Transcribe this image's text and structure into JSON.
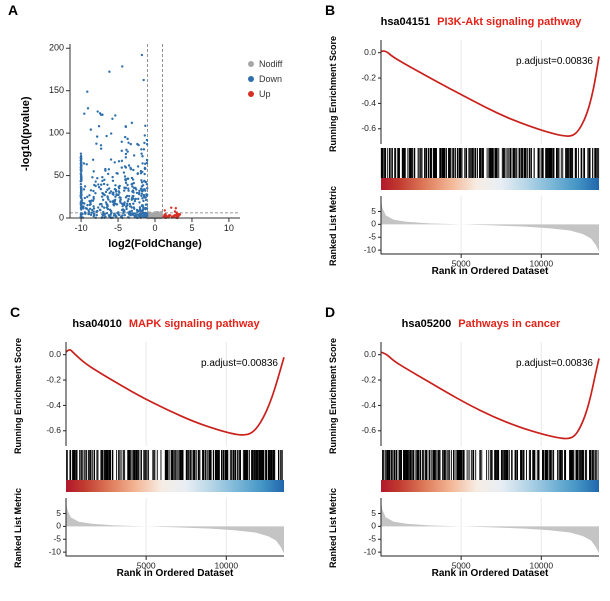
{
  "background": "#ffffff",
  "chart_data": [
    {
      "panel_label": "A",
      "type": "scatter",
      "variant": "volcano",
      "xlabel": "log2(FoldChange)",
      "ylabel": "-log10(pvalue)",
      "xlim": [
        -11.5,
        11.5
      ],
      "ylim": [
        0,
        205
      ],
      "xticks": [
        -10,
        -5,
        0,
        5,
        10
      ],
      "yticks": [
        0,
        50,
        100,
        150,
        200
      ],
      "vlines": [
        -1,
        1
      ],
      "hline": 6,
      "axis_color": "#333333",
      "legend": [
        {
          "label": "Nodiff",
          "color": "#a6a6a6"
        },
        {
          "label": "Down",
          "color": "#2e6fac"
        },
        {
          "label": "Up",
          "color": "#d73027"
        }
      ],
      "point_groups": [
        {
          "name": "nodiff",
          "color": "#a6a6a6",
          "count": 170,
          "seed": 31,
          "x_range": [
            -1.02,
            1.02
          ],
          "y_max": 7,
          "dist": "uniform"
        },
        {
          "name": "down",
          "color": "#2e6fac",
          "count": 430,
          "seed": 11,
          "x_range": [
            -10,
            -1.05
          ],
          "y_max": 192,
          "dist": "exp"
        },
        {
          "name": "down_capped",
          "color": "#2e6fac",
          "count": 90,
          "seed": 21,
          "x_range": [
            -10.05,
            -9.95
          ],
          "y_max": 78,
          "dist": "bar"
        },
        {
          "name": "up",
          "color": "#d73027",
          "count": 44,
          "seed": 41,
          "x_range": [
            1.05,
            3.4
          ],
          "y_max": 22,
          "dist": "exp"
        }
      ]
    },
    {
      "panel_label": "B",
      "type": "gsea",
      "title_id": "hsa04151",
      "title_name": "PI3K-Akt signaling pathway",
      "title_color": "#e2231a",
      "p_adjust": "p.adjust=0.00836",
      "es_ylabel": "Running Enrichment Score",
      "metric_ylabel": "Ranked List Metric",
      "xlabel": "Rank in Ordered Dataset",
      "xlim": [
        0,
        13600
      ],
      "xticks": [
        5000,
        10000
      ],
      "es_ylim": [
        0.1,
        -0.72
      ],
      "es_yticks": [
        0,
        -0.2,
        -0.4,
        -0.6
      ],
      "metric_ylim": [
        11,
        -11.5
      ],
      "metric_yticks": [
        5,
        0,
        -5,
        -10
      ],
      "es_color": "#c9211c",
      "hits_color": "#000000",
      "metric_color": "#c4c4c4",
      "grid_color": "#e9e9e9",
      "hits": {
        "count": 270,
        "seed": 5
      },
      "gradient_stops": [
        [
          0,
          "#b2182b"
        ],
        [
          0.08,
          "#c0392f"
        ],
        [
          0.2,
          "#dd7a5a"
        ],
        [
          0.32,
          "#f3b695"
        ],
        [
          0.44,
          "#f6ede4"
        ],
        [
          0.55,
          "#e8eef4"
        ],
        [
          0.66,
          "#b9d7e8"
        ],
        [
          0.78,
          "#7db8d8"
        ],
        [
          0.9,
          "#4495c5"
        ],
        [
          1,
          "#2166ac"
        ]
      ],
      "es_curve": {
        "x": [
          0,
          250,
          700,
          1500,
          2500,
          3500,
          5000,
          6500,
          8000,
          9500,
          10500,
          11300,
          11900,
          12300,
          12700,
          13000,
          13250,
          13450,
          13600
        ],
        "y": [
          0.01,
          0.02,
          -0.03,
          -0.09,
          -0.16,
          -0.23,
          -0.33,
          -0.43,
          -0.52,
          -0.59,
          -0.63,
          -0.655,
          -0.66,
          -0.62,
          -0.53,
          -0.42,
          -0.29,
          -0.15,
          -0.03
        ]
      },
      "metric_curve": {
        "x": [
          0,
          80,
          300,
          800,
          1600,
          3000,
          5000,
          7000,
          9000,
          10500,
          11800,
          12600,
          13100,
          13400,
          13600
        ],
        "y": [
          10,
          6.5,
          3.5,
          1.8,
          1.0,
          0.4,
          0,
          -0.4,
          -0.9,
          -1.5,
          -2.4,
          -3.8,
          -5.5,
          -8,
          -10.5
        ]
      }
    },
    {
      "panel_label": "C",
      "type": "gsea",
      "title_id": "hsa04010",
      "title_name": "MAPK signaling pathway",
      "title_color": "#e2231a",
      "p_adjust": "p.adjust=0.00836",
      "es_ylabel": "Running Enrichment Score",
      "metric_ylabel": "Ranked List Metric",
      "xlabel": "Rank in Ordered Dataset",
      "xlim": [
        0,
        13600
      ],
      "xticks": [
        5000,
        10000
      ],
      "es_ylim": [
        0.1,
        -0.72
      ],
      "es_yticks": [
        0,
        -0.2,
        -0.4,
        -0.6
      ],
      "metric_ylim": [
        11,
        -11.5
      ],
      "metric_yticks": [
        5,
        0,
        -5,
        -10
      ],
      "es_color": "#c9211c",
      "hits_color": "#000000",
      "metric_color": "#c4c4c4",
      "grid_color": "#e9e9e9",
      "hits": {
        "count": 270,
        "seed": 9
      },
      "gradient_stops": [
        [
          0,
          "#b2182b"
        ],
        [
          0.08,
          "#c0392f"
        ],
        [
          0.2,
          "#dd7a5a"
        ],
        [
          0.32,
          "#f3b695"
        ],
        [
          0.44,
          "#f6ede4"
        ],
        [
          0.55,
          "#e8eef4"
        ],
        [
          0.66,
          "#b9d7e8"
        ],
        [
          0.78,
          "#7db8d8"
        ],
        [
          0.9,
          "#4495c5"
        ],
        [
          1,
          "#2166ac"
        ]
      ],
      "es_curve": {
        "x": [
          0,
          200,
          500,
          1200,
          2200,
          3400,
          4800,
          6400,
          8000,
          9400,
          10400,
          11000,
          11500,
          11900,
          12300,
          12700,
          13050,
          13350,
          13600
        ],
        "y": [
          0.02,
          0.05,
          0.01,
          -0.07,
          -0.15,
          -0.24,
          -0.34,
          -0.44,
          -0.53,
          -0.59,
          -0.625,
          -0.635,
          -0.625,
          -0.58,
          -0.5,
          -0.39,
          -0.26,
          -0.13,
          -0.02
        ]
      },
      "metric_curve": {
        "x": [
          0,
          80,
          300,
          800,
          1600,
          3000,
          5000,
          7000,
          9000,
          10500,
          11800,
          12600,
          13100,
          13400,
          13600
        ],
        "y": [
          10,
          6.5,
          3.5,
          1.8,
          1.0,
          0.4,
          0,
          -0.4,
          -0.9,
          -1.5,
          -2.4,
          -3.8,
          -5.5,
          -8,
          -10.5
        ]
      }
    },
    {
      "panel_label": "D",
      "type": "gsea",
      "title_id": "hsa05200",
      "title_name": "Pathways in cancer",
      "title_color": "#e2231a",
      "p_adjust": "p.adjust=0.00836",
      "es_ylabel": "Running Enrichment Score",
      "metric_ylabel": "Ranked List Metric",
      "xlabel": "Rank in Ordered Dataset",
      "xlim": [
        0,
        13600
      ],
      "xticks": [
        5000,
        10000
      ],
      "es_ylim": [
        0.1,
        -0.72
      ],
      "es_yticks": [
        0,
        -0.2,
        -0.4,
        -0.6
      ],
      "metric_ylim": [
        11,
        -11.5
      ],
      "metric_yticks": [
        5,
        0,
        -5,
        -10
      ],
      "es_color": "#c9211c",
      "hits_color": "#000000",
      "metric_color": "#c4c4c4",
      "grid_color": "#e9e9e9",
      "hits": {
        "count": 270,
        "seed": 13
      },
      "gradient_stops": [
        [
          0,
          "#b2182b"
        ],
        [
          0.08,
          "#c0392f"
        ],
        [
          0.2,
          "#dd7a5a"
        ],
        [
          0.32,
          "#f3b695"
        ],
        [
          0.44,
          "#f6ede4"
        ],
        [
          0.55,
          "#e8eef4"
        ],
        [
          0.66,
          "#b9d7e8"
        ],
        [
          0.78,
          "#7db8d8"
        ],
        [
          0.9,
          "#4495c5"
        ],
        [
          1,
          "#2166ac"
        ]
      ],
      "es_curve": {
        "x": [
          0,
          300,
          800,
          1700,
          2800,
          4000,
          5400,
          7000,
          8600,
          10000,
          11000,
          11700,
          12100,
          12450,
          12800,
          13100,
          13350,
          13600
        ],
        "y": [
          0.02,
          0.01,
          -0.05,
          -0.12,
          -0.2,
          -0.29,
          -0.39,
          -0.49,
          -0.57,
          -0.625,
          -0.655,
          -0.665,
          -0.64,
          -0.57,
          -0.46,
          -0.32,
          -0.17,
          -0.03
        ]
      },
      "metric_curve": {
        "x": [
          0,
          80,
          300,
          800,
          1600,
          3000,
          5000,
          7000,
          9000,
          10500,
          11800,
          12600,
          13100,
          13400,
          13600
        ],
        "y": [
          10,
          6.5,
          3.5,
          1.8,
          1.0,
          0.4,
          0,
          -0.4,
          -0.9,
          -1.5,
          -2.4,
          -3.8,
          -5.5,
          -8,
          -10.5
        ]
      }
    }
  ]
}
